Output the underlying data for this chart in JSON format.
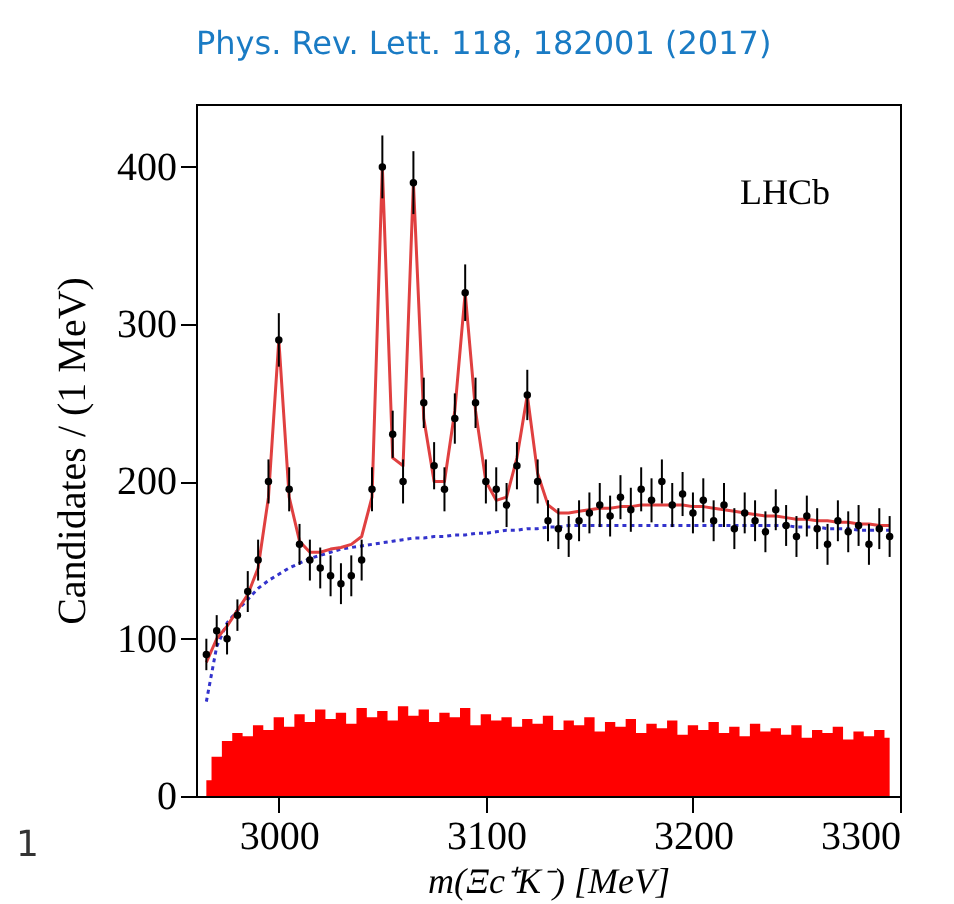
{
  "chart_data": {
    "type": "scatter",
    "xlabel": "m(Ξc⁺K⁻) [MeV]",
    "ylabel": "Candidates / (1 MeV)",
    "annotations": [
      "Phys. Rev. Lett. 118, 182001 (2017)",
      "LHCb",
      "1"
    ],
    "x": [
      2965,
      2970,
      2975,
      2980,
      2985,
      2990,
      2995,
      3000,
      3005,
      3010,
      3015,
      3020,
      3025,
      3030,
      3035,
      3040,
      3045,
      3050,
      3055,
      3060,
      3065,
      3070,
      3075,
      3080,
      3085,
      3090,
      3095,
      3100,
      3105,
      3110,
      3115,
      3120,
      3125,
      3130,
      3135,
      3140,
      3145,
      3150,
      3155,
      3160,
      3165,
      3170,
      3175,
      3180,
      3185,
      3190,
      3195,
      3200,
      3205,
      3210,
      3215,
      3220,
      3225,
      3230,
      3235,
      3240,
      3245,
      3250,
      3255,
      3260,
      3265,
      3270,
      3275,
      3280,
      3285,
      3290,
      3295
    ],
    "xlim": [
      2960,
      3300
    ],
    "xticks": [
      3000,
      3100,
      3200,
      3300
    ],
    "ylim": [
      0,
      440
    ],
    "yticks": [
      0,
      100,
      200,
      300,
      400
    ],
    "grid": false,
    "series": [
      {
        "type": "area",
        "color": "#ff0000",
        "values": [
          10,
          25,
          35,
          40,
          38,
          45,
          42,
          50,
          44,
          52,
          47,
          55,
          49,
          53,
          46,
          56,
          50,
          54,
          48,
          57,
          51,
          55,
          47,
          53,
          50,
          56,
          45,
          52,
          48,
          50,
          44,
          49,
          46,
          51,
          42,
          48,
          45,
          50,
          41,
          47,
          44,
          49,
          40,
          46,
          43,
          48,
          39,
          45,
          42,
          47,
          40,
          44,
          38,
          46,
          41,
          43,
          39,
          45,
          37,
          42,
          40,
          44,
          36,
          41,
          38,
          42,
          37
        ]
      },
      {
        "type": "line",
        "color": "#3333cc",
        "line_style": "dotted",
        "values": [
          60,
          95,
          110,
          118,
          125,
          132,
          137,
          141,
          145,
          148,
          151,
          153,
          155,
          157,
          158,
          159,
          160,
          161,
          162,
          163,
          164,
          164,
          165,
          165,
          166,
          166,
          167,
          167,
          168,
          169,
          169,
          170,
          170,
          171,
          171,
          172,
          172,
          172,
          172,
          172,
          172,
          172,
          172,
          172,
          172,
          172,
          172,
          172,
          172,
          172,
          172,
          172,
          172,
          172,
          172,
          172,
          172,
          171,
          171,
          171,
          170,
          170,
          170,
          169,
          169,
          169,
          169
        ]
      },
      {
        "type": "line",
        "color": "#e04040",
        "line_style": "solid",
        "values": [
          85,
          100,
          108,
          118,
          128,
          145,
          190,
          290,
          190,
          162,
          155,
          155,
          157,
          158,
          160,
          165,
          190,
          400,
          215,
          210,
          390,
          240,
          200,
          200,
          245,
          320,
          245,
          200,
          188,
          190,
          215,
          255,
          205,
          185,
          180,
          180,
          181,
          182,
          183,
          183,
          184,
          184,
          185,
          185,
          185,
          185,
          185,
          184,
          184,
          183,
          182,
          181,
          180,
          179,
          178,
          178,
          177,
          176,
          176,
          175,
          175,
          174,
          174,
          173,
          173,
          172,
          172
        ]
      },
      {
        "color": "#000000",
        "marker": "circle",
        "values": [
          90,
          105,
          100,
          115,
          130,
          150,
          200,
          290,
          195,
          160,
          150,
          145,
          140,
          135,
          140,
          150,
          195,
          400,
          230,
          200,
          390,
          250,
          210,
          195,
          240,
          320,
          250,
          200,
          195,
          185,
          210,
          255,
          200,
          175,
          170,
          165,
          175,
          180,
          185,
          178,
          190,
          182,
          195,
          188,
          200,
          185,
          192,
          180,
          188,
          175,
          185,
          170,
          180,
          175,
          168,
          182,
          172,
          165,
          178,
          170,
          160,
          175,
          168,
          172,
          160,
          170,
          165
        ],
        "errors": [
          10,
          10,
          10,
          10,
          13,
          13,
          14,
          17,
          14,
          13,
          13,
          13,
          13,
          13,
          13,
          13,
          14,
          20,
          15,
          14,
          20,
          16,
          15,
          14,
          16,
          18,
          16,
          14,
          14,
          14,
          15,
          16,
          14,
          13,
          13,
          13,
          13,
          13,
          14,
          13,
          14,
          14,
          14,
          14,
          14,
          14,
          14,
          13,
          14,
          13,
          14,
          13,
          13,
          13,
          13,
          13,
          13,
          13,
          13,
          13,
          13,
          13,
          13,
          13,
          13,
          13,
          13
        ]
      }
    ]
  }
}
